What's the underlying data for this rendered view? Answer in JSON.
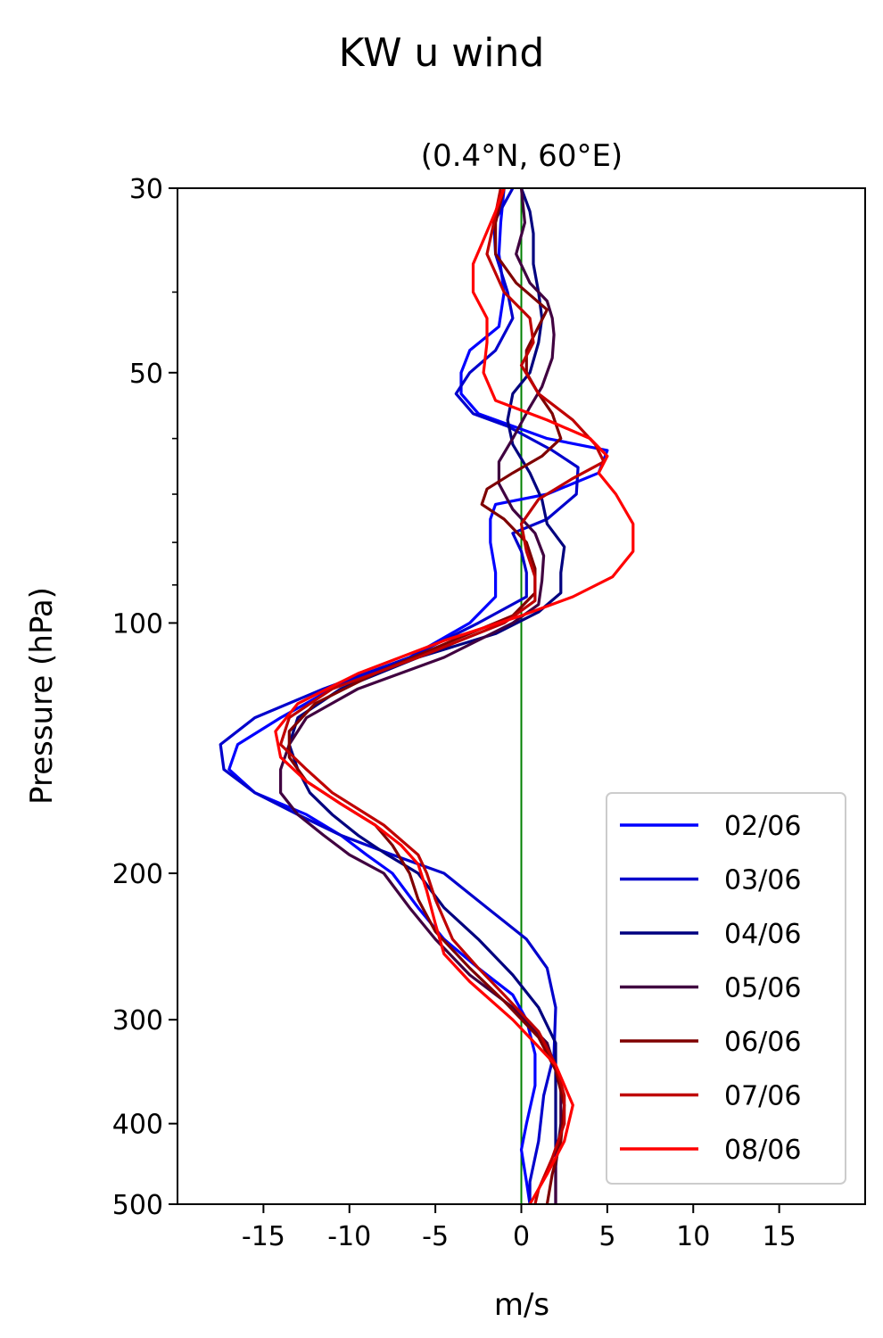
{
  "figure": {
    "suptitle": "KW u wind"
  },
  "chart_data": {
    "type": "line",
    "title": "(0.4°N, 60°E)",
    "xlabel": "m/s",
    "ylabel": "Pressure (hPa)",
    "xlim": [
      -20,
      20
    ],
    "ylim": [
      500,
      30
    ],
    "yscale": "log",
    "xticks": [
      -15,
      -10,
      -5,
      0,
      5,
      10,
      15
    ],
    "xtick_labels": [
      "-15",
      "-10",
      "-5",
      "0",
      "5",
      "10",
      "15"
    ],
    "yticks": [
      30,
      50,
      100,
      200,
      300,
      400,
      500
    ],
    "ytick_labels": [
      "30",
      "50",
      "100",
      "200",
      "300",
      "400",
      "500"
    ],
    "y_minor_ticks": [
      40,
      60,
      70,
      80,
      90
    ],
    "grid": false,
    "legend_position": "lower right",
    "reference_line": {
      "x": 0,
      "color": "#008000"
    },
    "series": [
      {
        "name": "02/06",
        "color": "#0000ff",
        "points": [
          [
            -1.0,
            30
          ],
          [
            -1.2,
            33
          ],
          [
            -1.3,
            36
          ],
          [
            -1.0,
            40
          ],
          [
            -1.3,
            44
          ],
          [
            -3.0,
            47
          ],
          [
            -3.5,
            50
          ],
          [
            -3.5,
            53
          ],
          [
            -2.5,
            56
          ],
          [
            1.5,
            60
          ],
          [
            5.0,
            62
          ],
          [
            4.5,
            66
          ],
          [
            1.5,
            70
          ],
          [
            -1.5,
            72
          ],
          [
            -1.8,
            75
          ],
          [
            -1.8,
            80
          ],
          [
            -1.5,
            87
          ],
          [
            -1.5,
            93
          ],
          [
            -3.0,
            100
          ],
          [
            -6.5,
            110
          ],
          [
            -11.0,
            120
          ],
          [
            -14.0,
            130
          ],
          [
            -16.5,
            140
          ],
          [
            -17.0,
            150
          ],
          [
            -15.5,
            160
          ],
          [
            -12.5,
            170
          ],
          [
            -10.5,
            180
          ],
          [
            -9.0,
            190
          ],
          [
            -7.5,
            200
          ],
          [
            -6.0,
            220
          ],
          [
            -4.5,
            240
          ],
          [
            -2.5,
            260
          ],
          [
            -0.5,
            280
          ],
          [
            0.3,
            300
          ],
          [
            0.8,
            330
          ],
          [
            0.8,
            360
          ],
          [
            0.3,
            400
          ],
          [
            0.0,
            430
          ],
          [
            0.3,
            470
          ],
          [
            0.5,
            500
          ]
        ]
      },
      {
        "name": "03/06",
        "color": "#0000cc",
        "points": [
          [
            -0.5,
            30
          ],
          [
            -1.6,
            33
          ],
          [
            -1.5,
            36
          ],
          [
            -0.8,
            40
          ],
          [
            -0.5,
            43
          ],
          [
            -1.5,
            47
          ],
          [
            -3.0,
            50
          ],
          [
            -3.8,
            53
          ],
          [
            -2.8,
            56
          ],
          [
            -0.8,
            58
          ],
          [
            1.8,
            62
          ],
          [
            3.3,
            65
          ],
          [
            3.2,
            70
          ],
          [
            1.5,
            75
          ],
          [
            -0.5,
            78
          ],
          [
            0.0,
            82
          ],
          [
            0.3,
            87
          ],
          [
            0.3,
            93
          ],
          [
            -2.5,
            100
          ],
          [
            -6.5,
            110
          ],
          [
            -11.5,
            120
          ],
          [
            -15.5,
            130
          ],
          [
            -17.5,
            140
          ],
          [
            -17.3,
            150
          ],
          [
            -15.5,
            160
          ],
          [
            -13.0,
            170
          ],
          [
            -10.5,
            180
          ],
          [
            -7.5,
            190
          ],
          [
            -4.5,
            200
          ],
          [
            -2.0,
            220
          ],
          [
            0.3,
            240
          ],
          [
            1.5,
            260
          ],
          [
            2.0,
            290
          ],
          [
            1.9,
            330
          ],
          [
            1.3,
            370
          ],
          [
            1.0,
            420
          ],
          [
            0.5,
            470
          ],
          [
            0.5,
            500
          ]
        ]
      },
      {
        "name": "04/06",
        "color": "#00007f",
        "points": [
          [
            0.0,
            30
          ],
          [
            0.5,
            32
          ],
          [
            0.7,
            34
          ],
          [
            0.7,
            37
          ],
          [
            1.0,
            40
          ],
          [
            1.2,
            43
          ],
          [
            1.0,
            46
          ],
          [
            0.5,
            50
          ],
          [
            -0.5,
            53
          ],
          [
            -0.8,
            57
          ],
          [
            -0.5,
            61
          ],
          [
            0.5,
            66
          ],
          [
            1.2,
            71
          ],
          [
            1.5,
            76
          ],
          [
            2.5,
            81
          ],
          [
            2.3,
            87
          ],
          [
            2.3,
            92
          ],
          [
            1.0,
            97
          ],
          [
            -1.5,
            103
          ],
          [
            -6.0,
            110
          ],
          [
            -10.5,
            120
          ],
          [
            -13.0,
            130
          ],
          [
            -13.5,
            140
          ],
          [
            -13.0,
            150
          ],
          [
            -12.3,
            160
          ],
          [
            -11.0,
            170
          ],
          [
            -9.5,
            180
          ],
          [
            -7.8,
            190
          ],
          [
            -6.0,
            200
          ],
          [
            -4.5,
            220
          ],
          [
            -2.5,
            240
          ],
          [
            -0.5,
            265
          ],
          [
            1.0,
            290
          ],
          [
            2.0,
            320
          ],
          [
            2.0,
            360
          ],
          [
            2.0,
            400
          ],
          [
            2.0,
            450
          ],
          [
            2.0,
            500
          ]
        ]
      },
      {
        "name": "05/06",
        "color": "#400040",
        "points": [
          [
            0.0,
            30
          ],
          [
            0.2,
            33
          ],
          [
            -0.3,
            36
          ],
          [
            0.5,
            39
          ],
          [
            1.5,
            41
          ],
          [
            1.8,
            43
          ],
          [
            1.9,
            45
          ],
          [
            1.8,
            48
          ],
          [
            1.2,
            52
          ],
          [
            0.5,
            55
          ],
          [
            -0.5,
            60
          ],
          [
            -1.3,
            64
          ],
          [
            -1.3,
            68
          ],
          [
            -0.5,
            73
          ],
          [
            0.8,
            78
          ],
          [
            1.3,
            83
          ],
          [
            1.2,
            89
          ],
          [
            1.0,
            95
          ],
          [
            -0.5,
            100
          ],
          [
            -4.5,
            110
          ],
          [
            -9.5,
            120
          ],
          [
            -12.5,
            130
          ],
          [
            -13.5,
            140
          ],
          [
            -14.0,
            150
          ],
          [
            -14.0,
            160
          ],
          [
            -13.0,
            170
          ],
          [
            -11.5,
            180
          ],
          [
            -10.0,
            190
          ],
          [
            -8.0,
            200
          ],
          [
            -6.5,
            220
          ],
          [
            -5.0,
            240
          ],
          [
            -3.0,
            265
          ],
          [
            -0.5,
            290
          ],
          [
            1.5,
            320
          ],
          [
            2.3,
            360
          ],
          [
            2.3,
            400
          ],
          [
            2.0,
            450
          ],
          [
            2.0,
            500
          ]
        ]
      },
      {
        "name": "06/06",
        "color": "#7f0000",
        "points": [
          [
            -1.0,
            30
          ],
          [
            -1.5,
            33
          ],
          [
            -1.5,
            36
          ],
          [
            -0.3,
            39
          ],
          [
            1.5,
            42
          ],
          [
            1.0,
            44
          ],
          [
            0.3,
            47
          ],
          [
            0.3,
            50
          ],
          [
            1.0,
            53
          ],
          [
            1.8,
            56
          ],
          [
            2.3,
            60
          ],
          [
            1.2,
            63
          ],
          [
            -0.5,
            66
          ],
          [
            -2.0,
            69
          ],
          [
            -2.3,
            72
          ],
          [
            -1.0,
            75
          ],
          [
            0.3,
            80
          ],
          [
            0.8,
            86
          ],
          [
            0.8,
            92
          ],
          [
            -0.5,
            98
          ],
          [
            -4.0,
            105
          ],
          [
            -8.5,
            115
          ],
          [
            -12.0,
            125
          ],
          [
            -13.5,
            135
          ],
          [
            -13.5,
            145
          ],
          [
            -12.5,
            155
          ],
          [
            -10.5,
            165
          ],
          [
            -8.5,
            175
          ],
          [
            -7.5,
            185
          ],
          [
            -6.5,
            200
          ],
          [
            -6.0,
            215
          ],
          [
            -5.0,
            235
          ],
          [
            -3.0,
            260
          ],
          [
            -1.0,
            285
          ],
          [
            1.0,
            315
          ],
          [
            2.0,
            345
          ],
          [
            2.5,
            380
          ],
          [
            2.3,
            420
          ],
          [
            1.8,
            460
          ],
          [
            1.5,
            500
          ]
        ]
      },
      {
        "name": "07/06",
        "color": "#bf0000",
        "points": [
          [
            -1.2,
            30
          ],
          [
            -1.6,
            33
          ],
          [
            -2.0,
            36
          ],
          [
            -1.0,
            40
          ],
          [
            0.5,
            43
          ],
          [
            0.7,
            46
          ],
          [
            0.0,
            49
          ],
          [
            1.0,
            53
          ],
          [
            3.0,
            57
          ],
          [
            4.3,
            61
          ],
          [
            4.8,
            64
          ],
          [
            3.0,
            67
          ],
          [
            1.0,
            71
          ],
          [
            0.0,
            76
          ],
          [
            0.3,
            82
          ],
          [
            0.8,
            88
          ],
          [
            0.8,
            94
          ],
          [
            -1.0,
            100
          ],
          [
            -6.0,
            110
          ],
          [
            -11.0,
            120
          ],
          [
            -13.5,
            130
          ],
          [
            -14.0,
            140
          ],
          [
            -12.5,
            150
          ],
          [
            -11.0,
            160
          ],
          [
            -8.0,
            175
          ],
          [
            -6.0,
            190
          ],
          [
            -5.5,
            200
          ],
          [
            -5.0,
            215
          ],
          [
            -4.0,
            240
          ],
          [
            -2.5,
            260
          ],
          [
            -1.0,
            280
          ],
          [
            1.0,
            310
          ],
          [
            2.0,
            340
          ],
          [
            2.5,
            370
          ],
          [
            2.5,
            400
          ],
          [
            1.8,
            440
          ],
          [
            1.0,
            480
          ],
          [
            0.8,
            500
          ]
        ]
      },
      {
        "name": "08/06",
        "color": "#ff0000",
        "points": [
          [
            -1.0,
            30
          ],
          [
            -1.5,
            32
          ],
          [
            -2.3,
            35
          ],
          [
            -2.8,
            37
          ],
          [
            -2.8,
            40
          ],
          [
            -2.0,
            43
          ],
          [
            -2.0,
            46
          ],
          [
            -2.2,
            50
          ],
          [
            -1.5,
            54
          ],
          [
            1.5,
            57
          ],
          [
            4.0,
            60
          ],
          [
            5.0,
            63
          ],
          [
            4.5,
            66
          ],
          [
            5.5,
            70
          ],
          [
            6.5,
            76
          ],
          [
            6.5,
            82
          ],
          [
            5.3,
            88
          ],
          [
            3.0,
            93
          ],
          [
            0.0,
            98
          ],
          [
            -4.5,
            105
          ],
          [
            -9.5,
            115
          ],
          [
            -13.0,
            125
          ],
          [
            -14.3,
            135
          ],
          [
            -14.0,
            145
          ],
          [
            -12.5,
            155
          ],
          [
            -10.5,
            165
          ],
          [
            -8.5,
            175
          ],
          [
            -7.0,
            185
          ],
          [
            -6.0,
            195
          ],
          [
            -5.5,
            210
          ],
          [
            -5.0,
            230
          ],
          [
            -4.5,
            250
          ],
          [
            -3.0,
            270
          ],
          [
            -0.5,
            300
          ],
          [
            2.0,
            340
          ],
          [
            3.0,
            380
          ],
          [
            2.5,
            420
          ],
          [
            1.5,
            460
          ],
          [
            0.5,
            500
          ]
        ]
      }
    ]
  }
}
